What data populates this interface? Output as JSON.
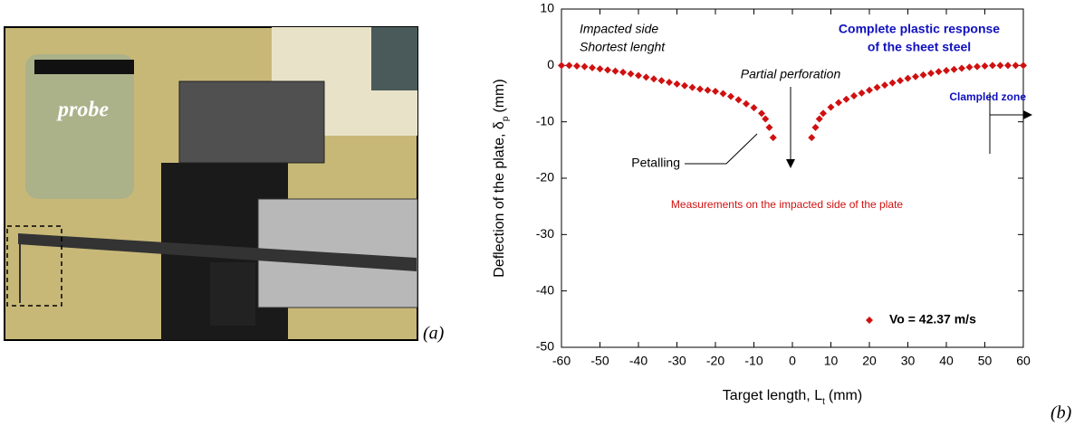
{
  "chart_data": {
    "type": "scatter",
    "xlabel": "Target length, L",
    "xlabel_sub": "t",
    "xlabel_unit": "(mm)",
    "ylabel": "Deflection of the plate, δ",
    "ylabel_sub": "p",
    "ylabel_unit": "(mm)",
    "x": [
      -60,
      -58,
      -56,
      -54,
      -52,
      -50,
      -48,
      -46,
      -44,
      -42,
      -40,
      -38,
      -36,
      -34,
      -32,
      -30,
      -28,
      -26,
      -24,
      -22,
      -20,
      -18,
      -16,
      -14,
      -12,
      -10,
      -8,
      -7,
      -6,
      -5,
      5,
      6,
      7,
      8,
      10,
      12,
      14,
      16,
      18,
      20,
      22,
      24,
      26,
      28,
      30,
      32,
      34,
      36,
      38,
      40,
      42,
      44,
      46,
      48,
      50,
      52,
      54,
      56,
      58,
      60
    ],
    "series": [
      {
        "name": "Vo = 42.37 m/s",
        "color": "#d01010",
        "values": [
          0,
          0,
          -0.1,
          -0.2,
          -0.4,
          -0.6,
          -0.8,
          -1.0,
          -1.2,
          -1.5,
          -1.8,
          -2.1,
          -2.4,
          -2.7,
          -3.0,
          -3.3,
          -3.6,
          -3.9,
          -4.2,
          -4.4,
          -4.6,
          -5.0,
          -5.5,
          -6.1,
          -6.8,
          -7.5,
          -8.5,
          -9.5,
          -11,
          -12.8,
          -12.8,
          -11,
          -9.5,
          -8.5,
          -7.4,
          -6.6,
          -6.0,
          -5.4,
          -4.9,
          -4.4,
          -3.9,
          -3.5,
          -3.1,
          -2.7,
          -2.3,
          -2.0,
          -1.7,
          -1.4,
          -1.1,
          -0.9,
          -0.7,
          -0.5,
          -0.3,
          -0.2,
          -0.1,
          0,
          0,
          0,
          0,
          0
        ]
      }
    ],
    "xlim": [
      -60,
      60
    ],
    "xticks": [
      -60,
      -50,
      -40,
      -30,
      -20,
      -10,
      0,
      10,
      20,
      30,
      40,
      50,
      60
    ],
    "ylim": [
      -50,
      10
    ],
    "yticks": [
      -50,
      -40,
      -30,
      -20,
      -10,
      0,
      10
    ],
    "grid": false,
    "legend": "lower right",
    "annotations": [
      "Impacted side",
      "Shortest lenght",
      "Complete plastic response",
      "of the sheet steel",
      "Partial perforation",
      "Petalling",
      "Clampled zone",
      "Measurements on the impacted side of the plate"
    ]
  },
  "photo": {
    "label": "probe",
    "caption": "(a)"
  },
  "chart_caption": "(b)"
}
